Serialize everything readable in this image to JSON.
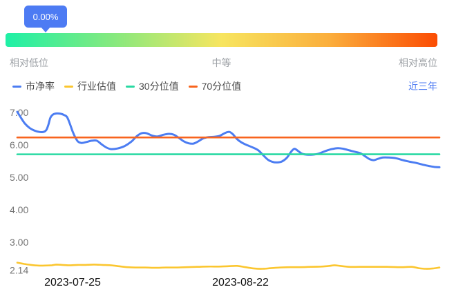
{
  "colors": {
    "accent": "#4D7BF3",
    "gradient_stops": [
      "#1EF0A6",
      "#86E97E",
      "#F7E55F",
      "#FBAE3C",
      "#FB4C03"
    ],
    "pb_line": "#4C7DF2",
    "industry_line": "#FBC62F",
    "p30_line": "#29D9A2",
    "p70_line": "#F8641E"
  },
  "header": {
    "tooltip_value": "0.00%",
    "low_label": "相对低位",
    "mid_label": "中等",
    "high_label": "相对高位"
  },
  "legend": {
    "items": [
      {
        "label": "市净率",
        "color": "#4C7DF2"
      },
      {
        "label": "行业估值",
        "color": "#FBC62F"
      },
      {
        "label": "30分位值",
        "color": "#29D9A2"
      },
      {
        "label": "70分位值",
        "color": "#F8641E"
      }
    ],
    "range_label": "近三年"
  },
  "chart_data": {
    "type": "line",
    "ylim": [
      2.14,
      7.0
    ],
    "y_ticks": [
      "7.00",
      "6.00",
      "5.00",
      "4.00",
      "3.00",
      "2.14"
    ],
    "x_ticks": [
      {
        "label": "2023-07-25",
        "x": 105
      },
      {
        "label": "2023-08-22",
        "x": 348
      }
    ],
    "grid": false,
    "legend_position": "top",
    "series": [
      {
        "name": "市净率",
        "color": "#4C7DF2",
        "width": 3,
        "points": [
          [
            25,
            7.02
          ],
          [
            30,
            6.85
          ],
          [
            36,
            6.66
          ],
          [
            43,
            6.52
          ],
          [
            50,
            6.44
          ],
          [
            57,
            6.4
          ],
          [
            63,
            6.4
          ],
          [
            67,
            6.46
          ],
          [
            70,
            6.62
          ],
          [
            73,
            6.84
          ],
          [
            77,
            6.94
          ],
          [
            82,
            6.97
          ],
          [
            88,
            6.96
          ],
          [
            93,
            6.92
          ],
          [
            97,
            6.86
          ],
          [
            101,
            6.66
          ],
          [
            105,
            6.42
          ],
          [
            109,
            6.23
          ],
          [
            113,
            6.1
          ],
          [
            118,
            6.06
          ],
          [
            125,
            6.09
          ],
          [
            133,
            6.13
          ],
          [
            140,
            6.13
          ],
          [
            147,
            6.02
          ],
          [
            154,
            5.92
          ],
          [
            161,
            5.87
          ],
          [
            170,
            5.89
          ],
          [
            180,
            5.96
          ],
          [
            190,
            6.1
          ],
          [
            198,
            6.27
          ],
          [
            205,
            6.36
          ],
          [
            212,
            6.36
          ],
          [
            220,
            6.29
          ],
          [
            228,
            6.26
          ],
          [
            236,
            6.31
          ],
          [
            244,
            6.34
          ],
          [
            251,
            6.32
          ],
          [
            258,
            6.23
          ],
          [
            266,
            6.11
          ],
          [
            273,
            6.05
          ],
          [
            280,
            6.04
          ],
          [
            287,
            6.11
          ],
          [
            294,
            6.2
          ],
          [
            302,
            6.24
          ],
          [
            310,
            6.25
          ],
          [
            318,
            6.28
          ],
          [
            326,
            6.37
          ],
          [
            332,
            6.4
          ],
          [
            337,
            6.33
          ],
          [
            343,
            6.18
          ],
          [
            350,
            6.07
          ],
          [
            358,
            5.99
          ],
          [
            366,
            5.92
          ],
          [
            374,
            5.83
          ],
          [
            381,
            5.68
          ],
          [
            388,
            5.54
          ],
          [
            394,
            5.48
          ],
          [
            401,
            5.46
          ],
          [
            408,
            5.49
          ],
          [
            415,
            5.6
          ],
          [
            421,
            5.78
          ],
          [
            426,
            5.88
          ],
          [
            431,
            5.82
          ],
          [
            437,
            5.73
          ],
          [
            444,
            5.7
          ],
          [
            452,
            5.7
          ],
          [
            461,
            5.73
          ],
          [
            471,
            5.81
          ],
          [
            480,
            5.87
          ],
          [
            489,
            5.9
          ],
          [
            497,
            5.88
          ],
          [
            506,
            5.83
          ],
          [
            515,
            5.78
          ],
          [
            522,
            5.74
          ],
          [
            529,
            5.64
          ],
          [
            535,
            5.56
          ],
          [
            541,
            5.53
          ],
          [
            547,
            5.57
          ],
          [
            554,
            5.61
          ],
          [
            563,
            5.61
          ],
          [
            573,
            5.59
          ],
          [
            583,
            5.53
          ],
          [
            593,
            5.48
          ],
          [
            603,
            5.44
          ],
          [
            612,
            5.39
          ],
          [
            621,
            5.35
          ],
          [
            629,
            5.32
          ],
          [
            636,
            5.31
          ]
        ]
      },
      {
        "name": "行业估值",
        "color": "#FBC62F",
        "width": 2.6,
        "points": [
          [
            25,
            2.37
          ],
          [
            35,
            2.33
          ],
          [
            45,
            2.3
          ],
          [
            55,
            2.28
          ],
          [
            65,
            2.28
          ],
          [
            75,
            2.29
          ],
          [
            82,
            2.31
          ],
          [
            90,
            2.3
          ],
          [
            100,
            2.29
          ],
          [
            112,
            2.3
          ],
          [
            124,
            2.3
          ],
          [
            136,
            2.31
          ],
          [
            148,
            2.3
          ],
          [
            160,
            2.29
          ],
          [
            172,
            2.26
          ],
          [
            184,
            2.23
          ],
          [
            196,
            2.22
          ],
          [
            210,
            2.22
          ],
          [
            225,
            2.21
          ],
          [
            240,
            2.22
          ],
          [
            255,
            2.22
          ],
          [
            270,
            2.23
          ],
          [
            285,
            2.24
          ],
          [
            300,
            2.25
          ],
          [
            315,
            2.25
          ],
          [
            330,
            2.26
          ],
          [
            343,
            2.27
          ],
          [
            355,
            2.23
          ],
          [
            368,
            2.19
          ],
          [
            380,
            2.18
          ],
          [
            392,
            2.2
          ],
          [
            405,
            2.22
          ],
          [
            420,
            2.23
          ],
          [
            435,
            2.23
          ],
          [
            450,
            2.24
          ],
          [
            465,
            2.25
          ],
          [
            477,
            2.27
          ],
          [
            484,
            2.29
          ],
          [
            492,
            2.27
          ],
          [
            505,
            2.24
          ],
          [
            520,
            2.24
          ],
          [
            540,
            2.24
          ],
          [
            560,
            2.24
          ],
          [
            580,
            2.23
          ],
          [
            596,
            2.24
          ],
          [
            606,
            2.2
          ],
          [
            616,
            2.18
          ],
          [
            626,
            2.19
          ],
          [
            636,
            2.22
          ]
        ]
      },
      {
        "name": "30分位值",
        "color": "#29D9A2",
        "width": 2.6,
        "value": 5.71
      },
      {
        "name": "70分位值",
        "color": "#F8641E",
        "width": 2.6,
        "value": 6.23
      }
    ]
  }
}
